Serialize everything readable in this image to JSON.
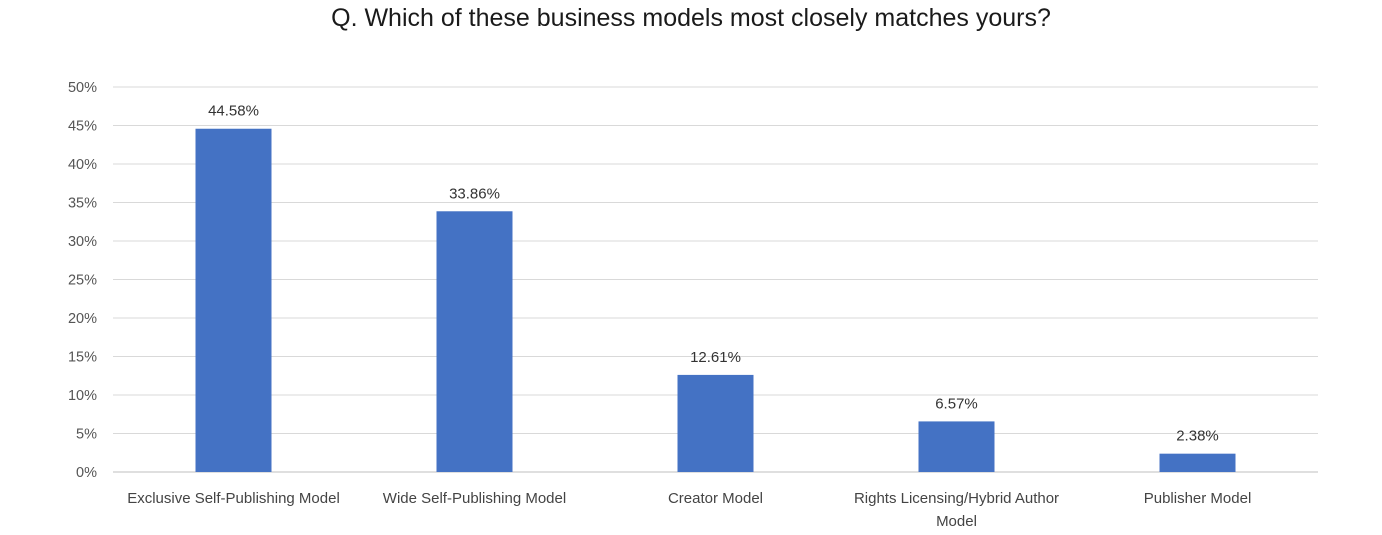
{
  "chart_data": {
    "type": "bar",
    "title": "Q. Which of these business models most closely matches yours?",
    "categories": [
      [
        "Exclusive Self-Publishing Model"
      ],
      [
        "Wide Self-Publishing Model"
      ],
      [
        "Creator Model"
      ],
      [
        "Rights Licensing/Hybrid Author",
        "Model"
      ],
      [
        "Publisher Model"
      ]
    ],
    "values": [
      44.58,
      33.86,
      12.61,
      6.57,
      2.38
    ],
    "data_labels": [
      "44.58%",
      "33.86%",
      "12.61%",
      "6.57%",
      "2.38%"
    ],
    "ylim": [
      0,
      50
    ],
    "yticks": [
      0,
      5,
      10,
      15,
      20,
      25,
      30,
      35,
      40,
      45,
      50
    ],
    "ytick_labels": [
      "0%",
      "5%",
      "10%",
      "15%",
      "20%",
      "25%",
      "30%",
      "35%",
      "40%",
      "45%",
      "50%"
    ],
    "grid": true,
    "legend": "none",
    "bar_color": "#4472C4"
  }
}
